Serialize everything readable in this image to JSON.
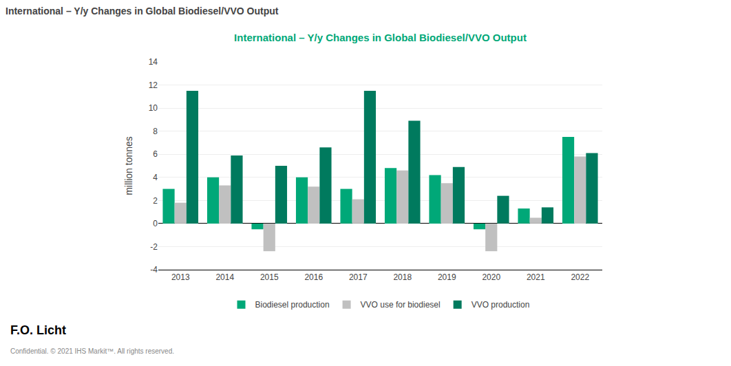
{
  "chart_data": {
    "type": "bar",
    "title": "International – Y/y Changes in Global Biodiesel/VVO Output",
    "ylabel": "million tonnes",
    "categories": [
      "2013",
      "2014",
      "2015",
      "2016",
      "2017",
      "2018",
      "2019",
      "2020",
      "2021",
      "2022"
    ],
    "series": [
      {
        "name": "Biodiesel production",
        "color": "#00a878",
        "values": [
          3.0,
          4.0,
          -0.5,
          4.0,
          3.0,
          4.8,
          4.2,
          -0.5,
          1.3,
          7.5
        ]
      },
      {
        "name": "VVO use for biodiesel",
        "color": "#c0c0c0",
        "values": [
          1.8,
          3.3,
          -2.4,
          3.2,
          2.1,
          4.6,
          3.5,
          -2.4,
          0.5,
          5.8
        ]
      },
      {
        "name": "VVO production",
        "color": "#007a5e",
        "values": [
          11.5,
          5.9,
          5.0,
          6.6,
          11.5,
          8.9,
          4.9,
          2.4,
          1.4,
          6.1
        ]
      }
    ],
    "ylim": [
      -4,
      14
    ],
    "yticks": [
      -4,
      -2,
      0,
      2,
      4,
      6,
      8,
      10,
      12,
      14
    ],
    "grid": true,
    "legend": "bottom",
    "annotations": [
      "International – Y/y Changes in Global Biodiesel/VVO Output",
      "F.O. Licht",
      "Confidential. © 2021 IHS Markit™. All rights reserved."
    ]
  }
}
